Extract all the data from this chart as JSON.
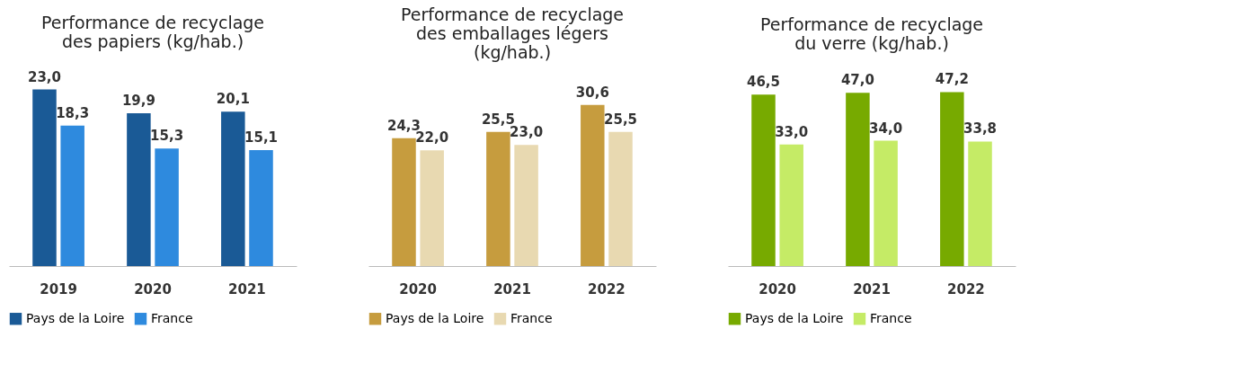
{
  "chart_data": [
    {
      "type": "bar",
      "title": "Performance de recyclage des papiers (kg/hab.)",
      "categories": [
        "2019",
        "2020",
        "2021"
      ],
      "series": [
        {
          "name": "Pays de la Loire",
          "color": "#1a5a96",
          "values": [
            23.0,
            19.9,
            20.1
          ],
          "value_labels": [
            "23,0",
            "19,9",
            "20,1"
          ]
        },
        {
          "name": "France",
          "color": "#2e8ade",
          "values": [
            18.3,
            15.3,
            15.1
          ],
          "value_labels": [
            "18,3",
            "15,3",
            "15,1"
          ]
        }
      ],
      "legend": "bottom",
      "grid": false
    },
    {
      "type": "bar",
      "title": "Performance de recyclage des emballages légers (kg/hab.)",
      "categories": [
        "2020",
        "2021",
        "2022"
      ],
      "series": [
        {
          "name": "Pays de la Loire",
          "color": "#c69c3e",
          "values": [
            24.3,
            25.5,
            30.6
          ],
          "value_labels": [
            "24,3",
            "25,5",
            "30,6"
          ]
        },
        {
          "name": "France",
          "color": "#e8d9b1",
          "values": [
            22.0,
            23.0,
            25.5
          ],
          "value_labels": [
            "22,0",
            "23,0",
            "25,5"
          ]
        }
      ],
      "legend": "bottom",
      "grid": false
    },
    {
      "type": "bar",
      "title": "Performance de recyclage du verre (kg/hab.)",
      "categories": [
        "2020",
        "2021",
        "2022"
      ],
      "series": [
        {
          "name": "Pays de la Loire",
          "color": "#77aa00",
          "values": [
            46.5,
            47.0,
            47.2
          ],
          "value_labels": [
            "46,5",
            "47,0",
            "47,2"
          ]
        },
        {
          "name": "France",
          "color": "#c5eb66",
          "values": [
            33.0,
            34.0,
            33.8
          ],
          "value_labels": [
            "33,0",
            "34,0",
            "33,8"
          ]
        }
      ],
      "legend": "bottom",
      "grid": false
    }
  ]
}
